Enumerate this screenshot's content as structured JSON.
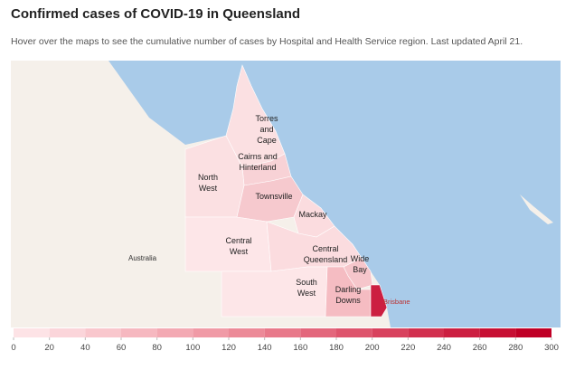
{
  "header": {
    "title": "Confirmed cases of COVID-19 in Queensland",
    "subtitle": "Hover over the maps to see the cumulative number of cases by Hospital and Health Service region. Last updated April 21."
  },
  "map": {
    "country_label": "Australia",
    "city_label": "Brisbane",
    "regions": [
      {
        "lines": [
          "Torres",
          "and",
          "Cape"
        ]
      },
      {
        "lines": [
          "Cairns and",
          "Hinterland"
        ]
      },
      {
        "lines": [
          "North",
          "West"
        ]
      },
      {
        "lines": [
          "Townsville"
        ]
      },
      {
        "lines": [
          "Mackay"
        ]
      },
      {
        "lines": [
          "Central",
          "West"
        ]
      },
      {
        "lines": [
          "Central",
          "Queensland"
        ]
      },
      {
        "lines": [
          "Wide",
          "Bay"
        ]
      },
      {
        "lines": [
          "South",
          "West"
        ]
      },
      {
        "lines": [
          "Darling",
          "Downs"
        ]
      }
    ]
  },
  "legend": {
    "range": [
      0,
      300
    ],
    "ticks": [
      0,
      20,
      40,
      60,
      80,
      100,
      120,
      140,
      160,
      180,
      200,
      220,
      240,
      260,
      280,
      300
    ],
    "colors": [
      "#fde3e6",
      "#fbd5da",
      "#f9c7cd",
      "#f6b8c0",
      "#f3a9b3",
      "#f09aa6",
      "#ec8a98",
      "#e8798a",
      "#e3677c",
      "#de556d",
      "#d8425e",
      "#d2304f",
      "#cc1f41",
      "#c70f33",
      "#c00026"
    ]
  }
}
